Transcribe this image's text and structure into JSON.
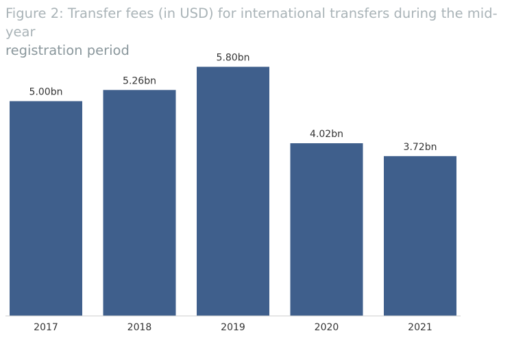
{
  "title": {
    "line1": "Figure 2: Transfer fees (in USD) for international transfers during the mid-year",
    "line2": "registration period"
  },
  "colors": {
    "bar": "#3f5f8c",
    "title": "#a9b3b7",
    "label": "#333333",
    "axis": "#cccccc"
  },
  "chart_data": {
    "type": "bar",
    "title": "Figure 2: Transfer fees (in USD) for international transfers during the mid-year registration period",
    "categories": [
      "2017",
      "2018",
      "2019",
      "2020",
      "2021"
    ],
    "values": [
      5.0,
      5.26,
      5.8,
      4.02,
      3.72
    ],
    "data_labels": [
      "5.00bn",
      "5.26bn",
      "5.80bn",
      "4.02bn",
      "3.72bn"
    ],
    "unit": "bn",
    "xlabel": "",
    "ylabel": "",
    "ylim": [
      0,
      6.27
    ],
    "grid": false,
    "legend": "none"
  }
}
